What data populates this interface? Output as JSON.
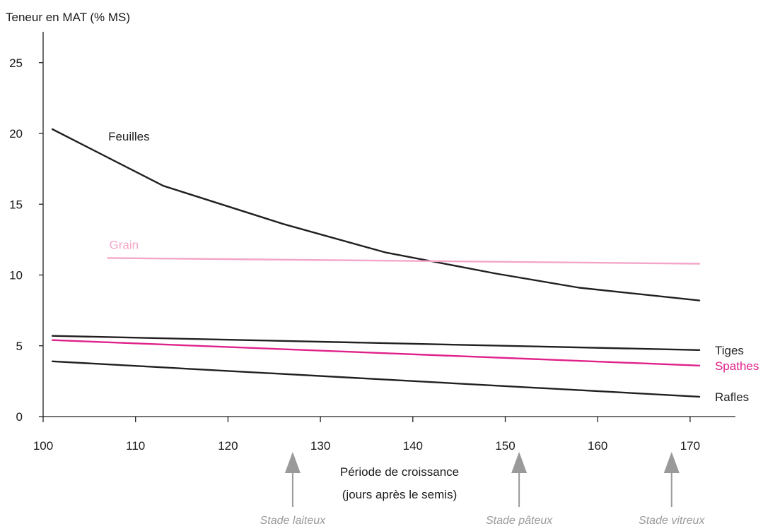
{
  "chart_data": {
    "type": "line",
    "ylabel": "Teneur en MAT (% MS)",
    "xlabel_line1": "Période de croissance",
    "xlabel_line2": "(jours après le semis)",
    "xlim": [
      100,
      174
    ],
    "ylim": [
      0,
      27
    ],
    "x_ticks": [
      100,
      110,
      120,
      130,
      140,
      150,
      160,
      170
    ],
    "y_ticks": [
      0,
      5,
      10,
      15,
      20,
      25
    ],
    "grid": false,
    "series": [
      {
        "name": "Feuilles",
        "color": "#231f20",
        "label_pos": "above-start",
        "x": [
          101,
          113,
          126,
          137,
          149,
          158,
          171
        ],
        "y": [
          20.3,
          16.3,
          13.6,
          11.6,
          10.1,
          9.1,
          8.2
        ]
      },
      {
        "name": "Grain",
        "color": "#f4a6c8",
        "label_pos": "above-start",
        "x": [
          107,
          171
        ],
        "y": [
          11.2,
          10.8
        ]
      },
      {
        "name": "Tiges",
        "color": "#231f20",
        "label_pos": "end",
        "x": [
          101,
          171
        ],
        "y": [
          5.7,
          4.7
        ]
      },
      {
        "name": "Spathes",
        "color": "#e0218a",
        "label_pos": "end",
        "x": [
          101,
          171
        ],
        "y": [
          5.4,
          3.6
        ]
      },
      {
        "name": "Rafles",
        "color": "#231f20",
        "label_pos": "end",
        "x": [
          101,
          171
        ],
        "y": [
          3.9,
          1.4
        ]
      }
    ],
    "annotations": [
      {
        "label": "Stade laiteux",
        "x": 127
      },
      {
        "label": "Stade pâteux",
        "x": 151.5
      },
      {
        "label": "Stade vitreux",
        "x": 168
      }
    ]
  }
}
